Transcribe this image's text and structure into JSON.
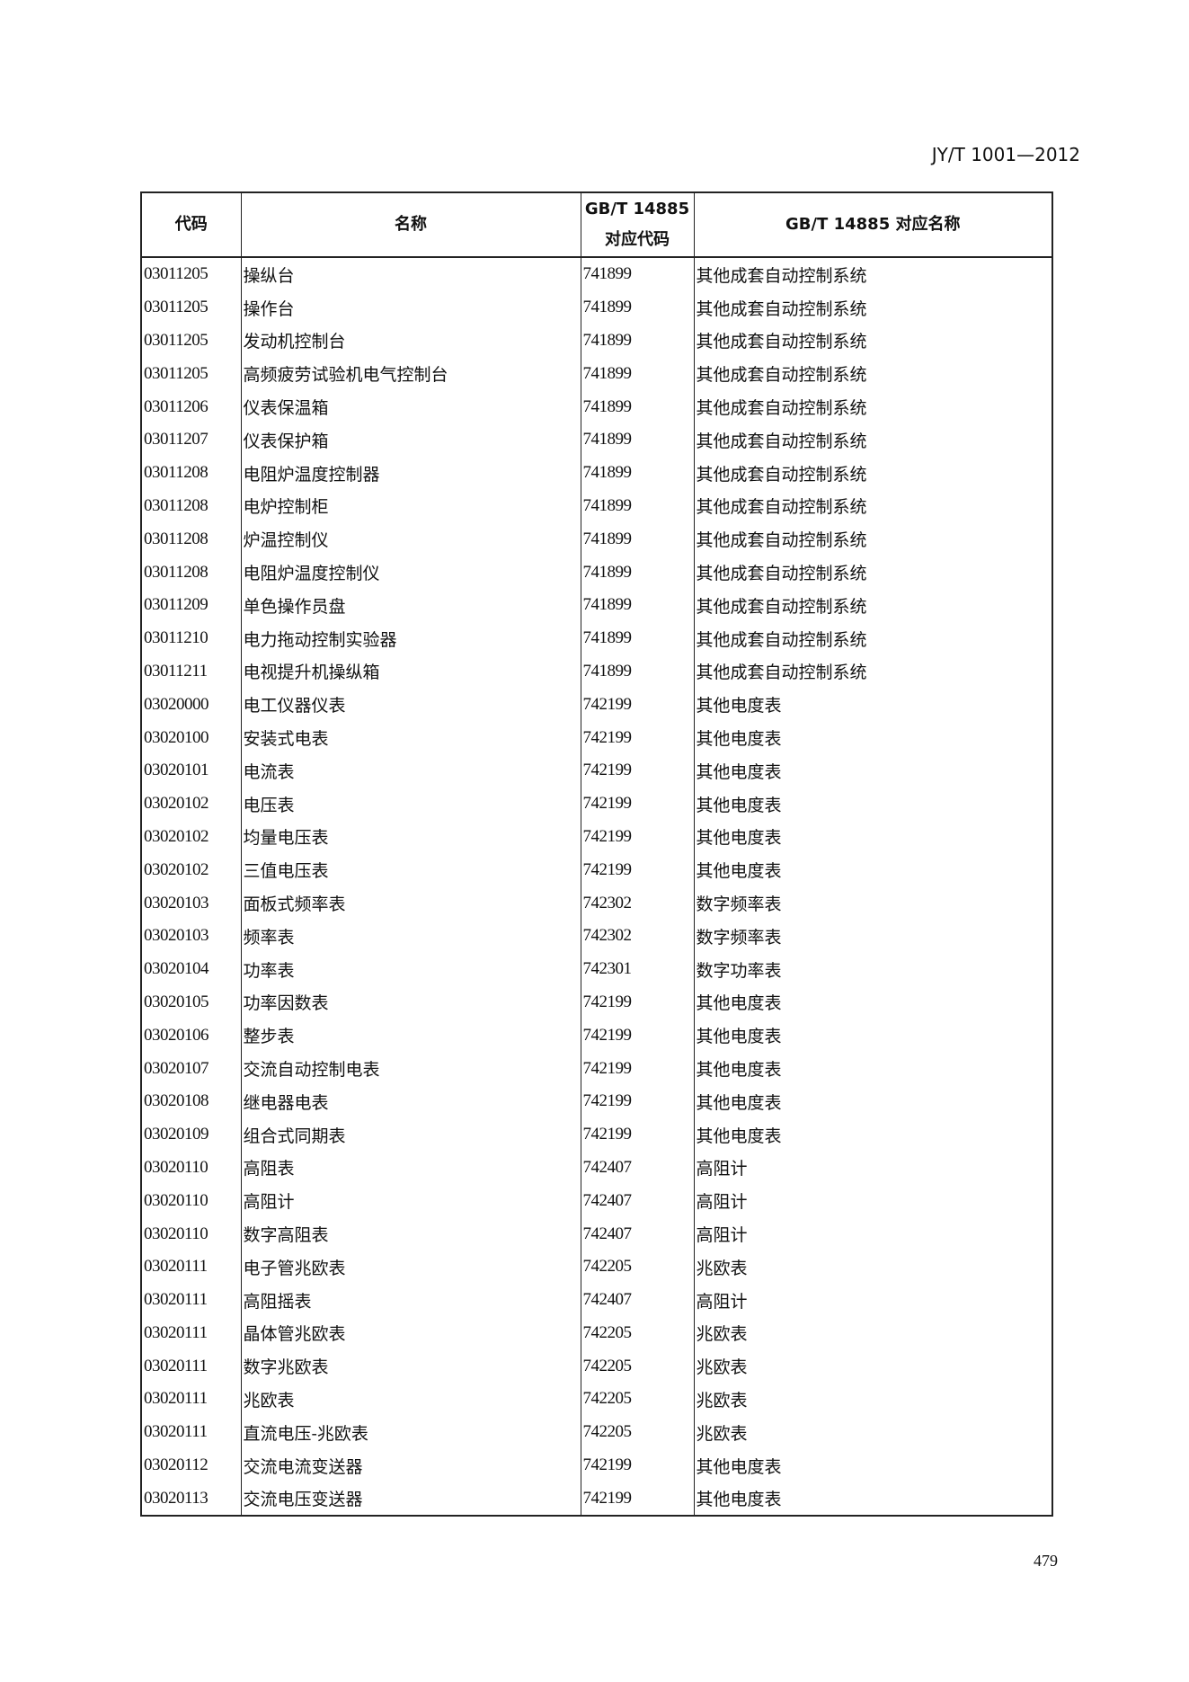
{
  "header": {
    "standard_code": "JY/T 1001—2012"
  },
  "table": {
    "column_lines": [
      [
        "代码"
      ],
      [
        "名称"
      ],
      [
        "GB/T 14885",
        "对应代码"
      ],
      [
        "GB/T 14885 对应名称"
      ]
    ],
    "rows": [
      [
        "03011205",
        "操纵台",
        "741899",
        "其他成套自动控制系统"
      ],
      [
        "03011205",
        "操作台",
        "741899",
        "其他成套自动控制系统"
      ],
      [
        "03011205",
        "发动机控制台",
        "741899",
        "其他成套自动控制系统"
      ],
      [
        "03011205",
        "高频疲劳试验机电气控制台",
        "741899",
        "其他成套自动控制系统"
      ],
      [
        "03011206",
        "仪表保温箱",
        "741899",
        "其他成套自动控制系统"
      ],
      [
        "03011207",
        "仪表保护箱",
        "741899",
        "其他成套自动控制系统"
      ],
      [
        "03011208",
        "电阻炉温度控制器",
        "741899",
        "其他成套自动控制系统"
      ],
      [
        "03011208",
        "电炉控制柜",
        "741899",
        "其他成套自动控制系统"
      ],
      [
        "03011208",
        "炉温控制仪",
        "741899",
        "其他成套自动控制系统"
      ],
      [
        "03011208",
        "电阻炉温度控制仪",
        "741899",
        "其他成套自动控制系统"
      ],
      [
        "03011209",
        "单色操作员盘",
        "741899",
        "其他成套自动控制系统"
      ],
      [
        "03011210",
        "电力拖动控制实验器",
        "741899",
        "其他成套自动控制系统"
      ],
      [
        "03011211",
        "电视提升机操纵箱",
        "741899",
        "其他成套自动控制系统"
      ],
      [
        "03020000",
        "电工仪器仪表",
        "742199",
        "其他电度表"
      ],
      [
        "03020100",
        "安装式电表",
        "742199",
        "其他电度表"
      ],
      [
        "03020101",
        "电流表",
        "742199",
        "其他电度表"
      ],
      [
        "03020102",
        "电压表",
        "742199",
        "其他电度表"
      ],
      [
        "03020102",
        "均量电压表",
        "742199",
        "其他电度表"
      ],
      [
        "03020102",
        "三值电压表",
        "742199",
        "其他电度表"
      ],
      [
        "03020103",
        "面板式频率表",
        "742302",
        "数字频率表"
      ],
      [
        "03020103",
        "频率表",
        "742302",
        "数字频率表"
      ],
      [
        "03020104",
        "功率表",
        "742301",
        "数字功率表"
      ],
      [
        "03020105",
        "功率因数表",
        "742199",
        "其他电度表"
      ],
      [
        "03020106",
        "整步表",
        "742199",
        "其他电度表"
      ],
      [
        "03020107",
        "交流自动控制电表",
        "742199",
        "其他电度表"
      ],
      [
        "03020108",
        "继电器电表",
        "742199",
        "其他电度表"
      ],
      [
        "03020109",
        "组合式同期表",
        "742199",
        "其他电度表"
      ],
      [
        "03020110",
        "高阻表",
        "742407",
        "高阻计"
      ],
      [
        "03020110",
        "高阻计",
        "742407",
        "高阻计"
      ],
      [
        "03020110",
        "数字高阻表",
        "742407",
        "高阻计"
      ],
      [
        "03020111",
        "电子管兆欧表",
        "742205",
        "兆欧表"
      ],
      [
        "03020111",
        "高阻摇表",
        "742407",
        "高阻计"
      ],
      [
        "03020111",
        "晶体管兆欧表",
        "742205",
        "兆欧表"
      ],
      [
        "03020111",
        "数字兆欧表",
        "742205",
        "兆欧表"
      ],
      [
        "03020111",
        "兆欧表",
        "742205",
        "兆欧表"
      ],
      [
        "03020111",
        "直流电压-兆欧表",
        "742205",
        "兆欧表"
      ],
      [
        "03020112",
        "交流电流变送器",
        "742199",
        "其他电度表"
      ],
      [
        "03020113",
        "交流电压变送器",
        "742199",
        "其他电度表"
      ]
    ]
  },
  "footer": {
    "page_number": "479"
  }
}
